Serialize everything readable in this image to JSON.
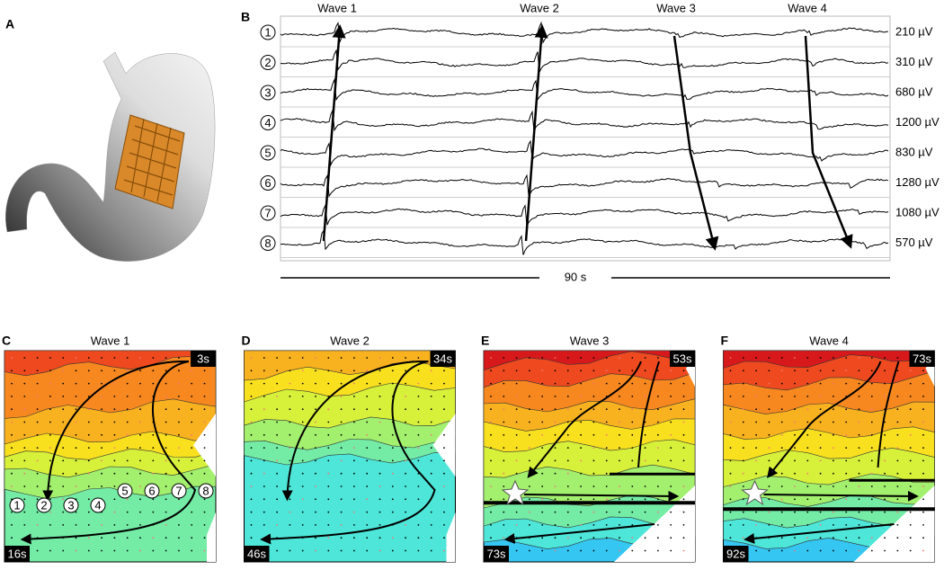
{
  "panel_a": {
    "label": "A"
  },
  "panel_b": {
    "label": "B",
    "waves": [
      "Wave 1",
      "Wave 2",
      "Wave 3",
      "Wave 4"
    ],
    "channels": [
      "1",
      "2",
      "3",
      "4",
      "5",
      "6",
      "7",
      "8"
    ],
    "amplitudes": [
      "210 µV",
      "310 µV",
      "680 µV",
      "1200 µV",
      "830 µV",
      "1280 µV",
      "1080 µV",
      "570 µV"
    ],
    "timescale": "90 s"
  },
  "maps": [
    {
      "label": "C",
      "title": "Wave 1",
      "start": "3s",
      "end": "16s"
    },
    {
      "label": "D",
      "title": "Wave 2",
      "start": "34s",
      "end": "46s"
    },
    {
      "label": "E",
      "title": "Wave 3",
      "start": "53s",
      "end": "73s"
    },
    {
      "label": "F",
      "title": "Wave 4",
      "start": "73s",
      "end": "92s"
    }
  ],
  "electrodes": [
    "1",
    "2",
    "3",
    "4",
    "5",
    "6",
    "7",
    "8"
  ]
}
